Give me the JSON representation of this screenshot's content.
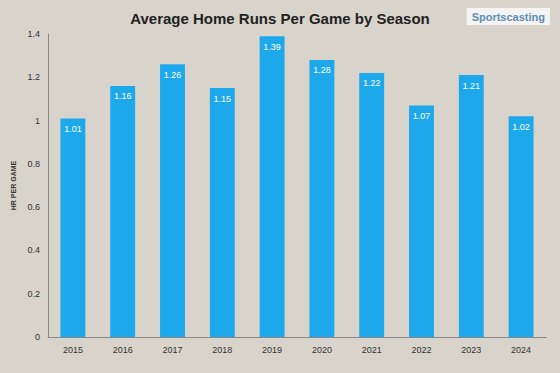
{
  "chart_data": {
    "type": "bar",
    "title": "Average Home Runs Per Game by Season",
    "source": "Sportscasting",
    "y_label": "HR PER GAME",
    "categories": [
      "2015",
      "2016",
      "2017",
      "2018",
      "2019",
      "2020",
      "2021",
      "2022",
      "2023",
      "2024"
    ],
    "values": [
      1.01,
      1.16,
      1.26,
      1.15,
      1.39,
      1.28,
      1.22,
      1.07,
      1.21,
      1.02
    ],
    "color": "#1ea8ec",
    "ylim": [
      0,
      1.4
    ],
    "yticks": [
      0,
      0.2,
      0.4,
      0.6,
      0.8,
      1,
      1.2,
      1.4
    ],
    "grid": false,
    "data_labels": true
  }
}
